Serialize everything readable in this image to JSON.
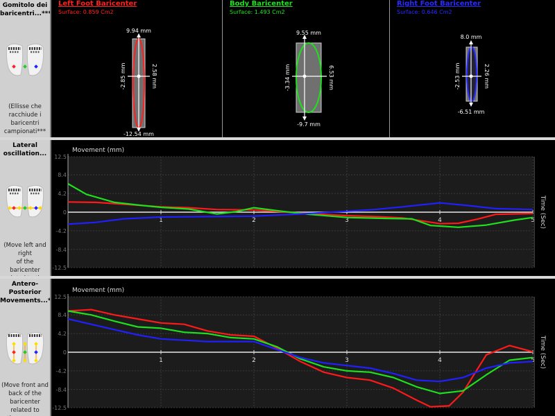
{
  "side": {
    "top": {
      "title": "Gomitolo dei\nbaricentri...***",
      "desc": "(Ellisse che\nracchiude i\nbaricentri\ncampionati***"
    },
    "mid": {
      "title": "Lateral\noscillation...",
      "desc": "(Move left and right\nof the baricenter\nrelated to the\naverage baricenter)"
    },
    "bot": {
      "title": "Antero-Posterior\nMovements...***",
      "desc": "(Move front and\nback of the\nbaricenter related to\nthe average"
    }
  },
  "feet": [
    {
      "title": "Left Foot Baricenter",
      "surface": "Surface: 0.859 Cm2",
      "color": "#ff2020",
      "top": "9.94 mm",
      "bottom": "-12.54 mm",
      "left": "-2.85 mm",
      "right": "2.58 mm"
    },
    {
      "title": "Body Baricenter",
      "surface": "Surface: 1.493 Cm2",
      "color": "#20e020",
      "top": "9.55 mm",
      "bottom": "-9.7 mm",
      "left": "-3.34 mm",
      "right": "6.53 mm"
    },
    {
      "title": "Right Foot Baricenter",
      "surface": "Surface: 0.646 Cm2",
      "color": "#2a2aff",
      "top": "8.0 mm",
      "bottom": "-6.51 mm",
      "left": "-2.53 mm",
      "right": "2.26 mm"
    }
  ],
  "chart_data": [
    {
      "type": "line",
      "ylabel": "Movement (mm)",
      "xlabel": "Time (Sec)",
      "ylim": [
        -12.5,
        12.5
      ],
      "xlim": [
        0,
        5
      ],
      "yticks": [
        "12.5",
        "8.4",
        "4.2",
        "0",
        "-4.2",
        "-8.4",
        "-12.5"
      ],
      "xticks": [
        "1",
        "2",
        "3",
        "4",
        "5"
      ],
      "grid": true,
      "series": [
        {
          "color": "#ff1a1a",
          "x": [
            0,
            0.3,
            0.6,
            1,
            1.3,
            1.6,
            2,
            2.5,
            3,
            3.3,
            3.6,
            4,
            4.2,
            4.4,
            4.6,
            5
          ],
          "y": [
            2.3,
            2.2,
            1.8,
            1.2,
            1,
            0.6,
            0.5,
            -0.2,
            -0.8,
            -1,
            -1.3,
            -2.6,
            -2.5,
            -1.6,
            -0.5,
            -0.3
          ]
        },
        {
          "color": "#1ee01e",
          "x": [
            0,
            0.2,
            0.5,
            0.8,
            1,
            1.3,
            1.6,
            1.8,
            2,
            2.3,
            2.6,
            3,
            3.4,
            3.7,
            3.9,
            4.2,
            4.5,
            4.8,
            5
          ],
          "y": [
            6.4,
            4,
            2.2,
            1.5,
            1.1,
            0.7,
            -0.4,
            0.1,
            1,
            0.2,
            -0.5,
            -1.2,
            -1.4,
            -1.5,
            -3,
            -3.4,
            -2.9,
            -1.8,
            -1.2
          ]
        },
        {
          "color": "#2020ff",
          "x": [
            0,
            0.3,
            0.6,
            1,
            1.5,
            2,
            2.5,
            3,
            3.3,
            3.6,
            4,
            4.3,
            4.6,
            5
          ],
          "y": [
            -2.7,
            -2.3,
            -1.5,
            -1.1,
            -1,
            -0.9,
            -0.4,
            0.2,
            0.6,
            1.2,
            2.1,
            1.5,
            0.8,
            0.6
          ]
        }
      ]
    },
    {
      "type": "line",
      "ylabel": "Movement (mm)",
      "xlabel": "Time (Sec)",
      "ylim": [
        -12.5,
        12.5
      ],
      "xlim": [
        0,
        5
      ],
      "yticks": [
        "12.5",
        "8.4",
        "4.2",
        "0",
        "-4.2",
        "-8.4",
        "-12.5"
      ],
      "xticks": [
        "1",
        "2",
        "3",
        "4",
        "5"
      ],
      "grid": true,
      "series": [
        {
          "color": "#ff1a1a",
          "x": [
            0,
            0.25,
            0.5,
            0.75,
            1,
            1.25,
            1.5,
            1.75,
            2,
            2.25,
            2.5,
            2.75,
            3,
            3.25,
            3.5,
            3.75,
            3.9,
            4.1,
            4.25,
            4.5,
            4.75,
            5
          ],
          "y": [
            9.3,
            9.6,
            8.4,
            7.5,
            6.6,
            6.3,
            4.8,
            3.9,
            3.6,
            0.9,
            -2.1,
            -4.5,
            -5.7,
            -6.3,
            -8.1,
            -10.8,
            -12.3,
            -12.1,
            -9,
            -0.6,
            1.5,
            0.1
          ]
        },
        {
          "color": "#1ee01e",
          "x": [
            0,
            0.25,
            0.5,
            0.75,
            1,
            1.25,
            1.5,
            1.75,
            2,
            2.25,
            2.5,
            2.75,
            3,
            3.25,
            3.5,
            3.75,
            4,
            4.25,
            4.5,
            4.75,
            5
          ],
          "y": [
            9.3,
            8.4,
            7,
            5.7,
            5.4,
            4.5,
            4.2,
            3.3,
            3,
            1.2,
            -1.5,
            -3.3,
            -4.2,
            -4.5,
            -5.7,
            -7.8,
            -9.3,
            -8.7,
            -5.1,
            -1.8,
            -1.2
          ]
        },
        {
          "color": "#2020ff",
          "x": [
            0,
            0.25,
            0.5,
            0.75,
            1,
            1.25,
            1.5,
            1.75,
            2,
            2.25,
            2.5,
            2.75,
            3,
            3.25,
            3.5,
            3.75,
            4,
            4.25,
            4.5,
            4.75,
            5
          ],
          "y": [
            7.5,
            6.3,
            5.1,
            3.9,
            3,
            2.7,
            2.4,
            2.4,
            2.4,
            0.6,
            -1.2,
            -2.4,
            -3,
            -3.6,
            -4.8,
            -6.3,
            -6.6,
            -5.7,
            -3.6,
            -2.4,
            -2.1
          ]
        }
      ]
    }
  ]
}
